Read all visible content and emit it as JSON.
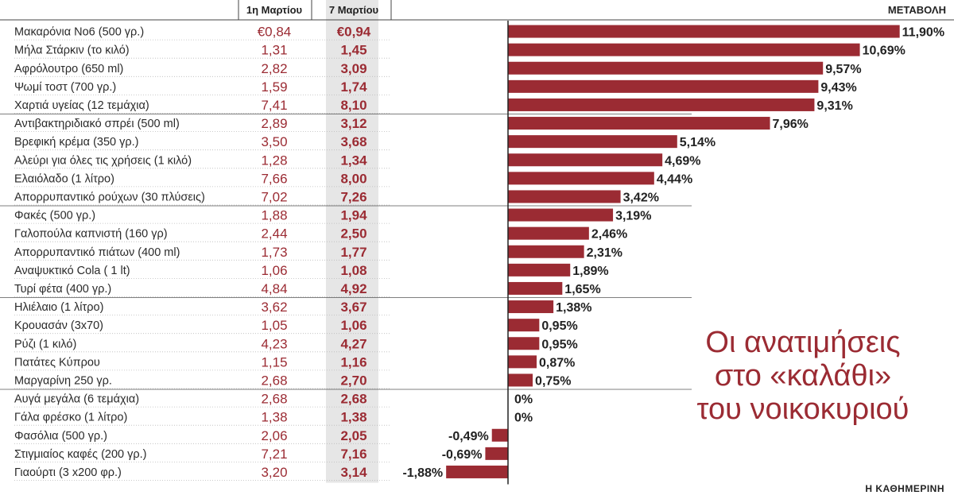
{
  "title_lines": [
    "Οι ανατιμήσεις",
    "στο «καλάθι»",
    "του νοικοκυριού"
  ],
  "source": "Η ΚΑΘΗΜΕΡΙΝΗ",
  "colors": {
    "bar": "#9b2b33",
    "value": "#9b2b33",
    "highlight": "#e6e6e6"
  },
  "chart_data": {
    "type": "bar",
    "orientation": "horizontal",
    "columns": {
      "date1": "1η Μαρτίου",
      "date2": "7 Μαρτίου",
      "change": "ΜΕΤΑΒΟΛΗ"
    },
    "unit_change": "%",
    "rows": [
      {
        "name": "Μακαρόνια Νο6 (500 γρ.)",
        "v1": "€0,84",
        "v2": "€0,94",
        "change": 11.9,
        "label": "11,90%"
      },
      {
        "name": "Μήλα Στάρκιν (το κιλό)",
        "v1": "1,31",
        "v2": "1,45",
        "change": 10.69,
        "label": "10,69%"
      },
      {
        "name": "Αφρόλουτρο (650 ml)",
        "v1": "2,82",
        "v2": "3,09",
        "change": 9.57,
        "label": "9,57%"
      },
      {
        "name": "Ψωμί τοστ (700 γρ.)",
        "v1": "1,59",
        "v2": "1,74",
        "change": 9.43,
        "label": "9,43%"
      },
      {
        "name": "Χαρτιά υγείας (12 τεμάχια)",
        "v1": "7,41",
        "v2": "8,10",
        "change": 9.31,
        "label": "9,31%"
      },
      {
        "name": "Αντιβακτηριδιακό σπρέι (500 ml)",
        "v1": "2,89",
        "v2": "3,12",
        "change": 7.96,
        "label": "7,96%"
      },
      {
        "name": "Βρεφική κρέμα (350 γρ.)",
        "v1": "3,50",
        "v2": "3,68",
        "change": 5.14,
        "label": "5,14%"
      },
      {
        "name": "Αλεύρι για όλες τις χρήσεις (1 κιλό)",
        "v1": "1,28",
        "v2": "1,34",
        "change": 4.69,
        "label": "4,69%"
      },
      {
        "name": "Ελαιόλαδο (1 λίτρο)",
        "v1": "7,66",
        "v2": "8,00",
        "change": 4.44,
        "label": "4,44%"
      },
      {
        "name": "Απορρυπαντικό ρούχων (30 πλύσεις)",
        "v1": "7,02",
        "v2": "7,26",
        "change": 3.42,
        "label": "3,42%"
      },
      {
        "name": "Φακές (500 γρ.)",
        "v1": "1,88",
        "v2": "1,94",
        "change": 3.19,
        "label": "3,19%"
      },
      {
        "name": "Γαλοπούλα καπνιστή (160 γρ)",
        "v1": "2,44",
        "v2": "2,50",
        "change": 2.46,
        "label": "2,46%"
      },
      {
        "name": "Απορρυπαντικό πιάτων (400 ml)",
        "v1": "1,73",
        "v2": "1,77",
        "change": 2.31,
        "label": "2,31%"
      },
      {
        "name": "Αναψυκτικό Cola ( 1 lt)",
        "v1": "1,06",
        "v2": "1,08",
        "change": 1.89,
        "label": "1,89%"
      },
      {
        "name": "Τυρί φέτα (400 γρ.)",
        "v1": "4,84",
        "v2": "4,92",
        "change": 1.65,
        "label": "1,65%"
      },
      {
        "name": "Ηλιέλαιο (1 λίτρο)",
        "v1": "3,62",
        "v2": "3,67",
        "change": 1.38,
        "label": "1,38%"
      },
      {
        "name": "Κρουασάν (3x70)",
        "v1": "1,05",
        "v2": "1,06",
        "change": 0.95,
        "label": "0,95%"
      },
      {
        "name": "Ρύζι (1 κιλό)",
        "v1": "4,23",
        "v2": "4,27",
        "change": 0.95,
        "label": "0,95%"
      },
      {
        "name": "Πατάτες Κύπρου",
        "v1": "1,15",
        "v2": "1,16",
        "change": 0.87,
        "label": "0,87%"
      },
      {
        "name": "Μαργαρίνη 250 γρ.",
        "v1": "2,68",
        "v2": "2,70",
        "change": 0.75,
        "label": "0,75%"
      },
      {
        "name": "Αυγά μεγάλα (6 τεμάχια)",
        "v1": "2,68",
        "v2": "2,68",
        "change": 0,
        "label": "0%"
      },
      {
        "name": "Γάλα φρέσκο (1 λίτρο)",
        "v1": "1,38",
        "v2": "1,38",
        "change": 0,
        "label": "0%"
      },
      {
        "name": "Φασόλια (500 γρ.)",
        "v1": "2,06",
        "v2": "2,05",
        "change": -0.49,
        "label": "-0,49%"
      },
      {
        "name": "Στιγμιαίος καφές (200 γρ.)",
        "v1": "7,21",
        "v2": "7,16",
        "change": -0.69,
        "label": "-0,69%"
      },
      {
        "name": "Γιαούρτι (3 x200 φρ.)",
        "v1": "3,20",
        "v2": "3,14",
        "change": -1.88,
        "label": "-1,88%"
      }
    ]
  }
}
